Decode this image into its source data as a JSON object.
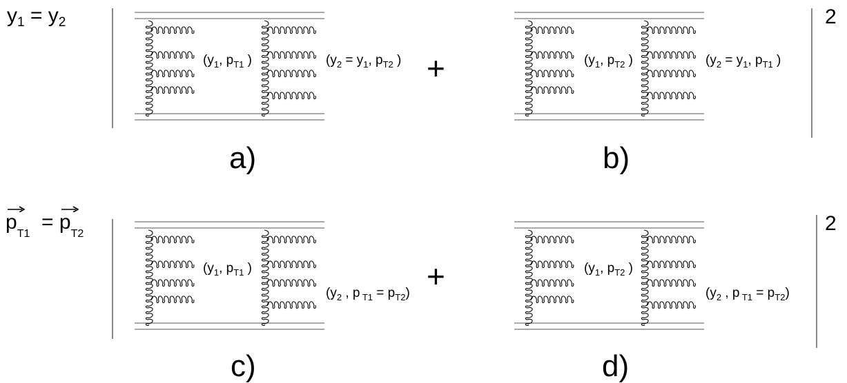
{
  "conditions": {
    "rapidity": {
      "lhs": "y",
      "lhs_sub": "1",
      "eq": "=",
      "rhs": "y",
      "rhs_sub": "2"
    },
    "momentum": {
      "lhs": "p",
      "lhs_sub": "T1",
      "eq": "=",
      "rhs": "p",
      "rhs_sub": "T2"
    }
  },
  "operators": {
    "plus": "+",
    "square": "2"
  },
  "diagrams": [
    {
      "id": "a",
      "caption": "a)",
      "label_left": {
        "open": "(y",
        "s1": "1",
        "mid": ", p",
        "s2": "T1",
        "close": " )"
      },
      "label_right": {
        "open": "(y",
        "s1": "2",
        "mid": " = y",
        "s2": "1",
        "mid2": ", p",
        "s3": "T2",
        "close": " )"
      }
    },
    {
      "id": "b",
      "caption": "b)",
      "label_left": {
        "open": "(y",
        "s1": "1",
        "mid": ", p",
        "s2": "T2",
        "close": " )"
      },
      "label_right": {
        "open": "(y",
        "s1": "2",
        "mid": " = y",
        "s2": "1",
        "mid2": ", p",
        "s3": "T1",
        "close": " )"
      }
    },
    {
      "id": "c",
      "caption": "c)",
      "label_left": {
        "open": "(y",
        "s1": "1",
        "mid": ", p",
        "s2": "T1",
        "close": " )"
      },
      "label_right": {
        "open": "(y",
        "s1": "2",
        "mid": " , p",
        "s2": " T1",
        "mid2": " =  p",
        "s3": "T2",
        "close": ")"
      }
    },
    {
      "id": "d",
      "caption": "d)",
      "label_left": {
        "open": "(y",
        "s1": "1",
        "mid": ", p",
        "s2": "T2",
        "close": " )"
      },
      "label_right": {
        "open": "(y",
        "s1": "2",
        "mid": " , p",
        "s2": " T1",
        "mid2": " =  p",
        "s3": "T2",
        "close": ")"
      }
    }
  ]
}
